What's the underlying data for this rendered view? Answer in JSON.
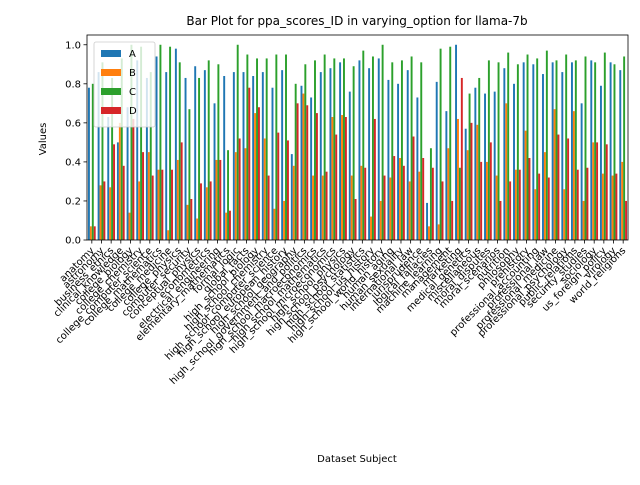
{
  "chart_data": {
    "type": "bar",
    "title": "Bar Plot for ppa_scores_ID in varying_option for llama-7b",
    "xlabel": "Dataset Subject",
    "ylabel": "Values",
    "ylim": [
      0,
      1.05
    ],
    "yticks": [
      "0.0",
      "0.2",
      "0.4",
      "0.6",
      "0.8",
      "1.0"
    ],
    "legend_position": "upper left",
    "categories": [
      "anatomy",
      "astronomy",
      "business_ethics",
      "clinical_knowledge",
      "college_biology",
      "college_chemistry",
      "college_computer_science",
      "college_mathematics",
      "college_medicine",
      "college_physics",
      "computer_security",
      "conceptual_physics",
      "econometrics",
      "electrical_engineering",
      "elementary_mathematics",
      "formal_logic",
      "global_facts",
      "high_school_biology",
      "high_school_chemistry",
      "high_school_computer_science",
      "high_school_european_history",
      "high_school_geography",
      "high_school_government_and_politics",
      "high_school_macroeconomics",
      "high_school_mathematics",
      "high_school_microeconomics",
      "high_school_physics",
      "high_school_psychology",
      "high_school_statistics",
      "high_school_us_history",
      "high_school_world_history",
      "human_aging",
      "human_sexuality",
      "international_law",
      "jurisprudence",
      "logical_fallacies",
      "machine_learning",
      "management",
      "marketing",
      "medical_genetics",
      "miscellaneous",
      "moral_disputes",
      "moral_scenarios",
      "nutrition",
      "philosophy",
      "prehistory",
      "professional_accounting",
      "professional_law",
      "professional_medicine",
      "professional_psychology",
      "public_relations",
      "security_studies",
      "sociology",
      "us_foreign_policy",
      "virology",
      "world_religions"
    ],
    "series": [
      {
        "name": "A",
        "color": "#1f77b4",
        "values": [
          0.78,
          0.86,
          0.63,
          0.5,
          0.68,
          0.92,
          0.83,
          0.94,
          0.86,
          0.98,
          0.83,
          0.89,
          0.87,
          0.7,
          0.84,
          0.86,
          0.86,
          0.84,
          0.86,
          0.78,
          0.87,
          0.44,
          0.79,
          0.73,
          0.86,
          0.88,
          0.91,
          0.76,
          0.92,
          0.88,
          0.93,
          0.82,
          0.8,
          0.87,
          0.73,
          0.19,
          0.81,
          0.66,
          1.0,
          0.57,
          0.78,
          0.75,
          0.76,
          0.88,
          0.8,
          0.91,
          0.9,
          0.85,
          0.91,
          0.86,
          0.91,
          0.7,
          0.92,
          0.79,
          0.91,
          0.87
        ]
      },
      {
        "name": "B",
        "color": "#ff7f0e",
        "values": [
          0.07,
          0.28,
          0.27,
          0.6,
          0.14,
          0.3,
          0.45,
          0.36,
          0.05,
          0.41,
          0.18,
          0.11,
          0.27,
          0.41,
          0.14,
          0.45,
          0.47,
          0.65,
          0.52,
          0.16,
          0.2,
          0.38,
          0.75,
          0.33,
          0.33,
          0.63,
          0.64,
          0.33,
          0.38,
          0.12,
          0.2,
          0.32,
          0.42,
          0.3,
          0.35,
          0.07,
          0.08,
          0.47,
          0.62,
          0.46,
          0.59,
          0.4,
          0.33,
          0.7,
          0.36,
          0.56,
          0.26,
          0.45,
          0.67,
          0.26,
          0.66,
          0.2,
          0.5,
          0.34,
          0.33,
          0.4
        ]
      },
      {
        "name": "C",
        "color": "#2ca02c",
        "values": [
          0.8,
          0.91,
          0.83,
          0.93,
          1.0,
          0.99,
          0.86,
          1.0,
          0.99,
          0.91,
          0.67,
          0.83,
          0.92,
          0.9,
          0.46,
          1.0,
          0.95,
          0.93,
          0.93,
          0.95,
          0.95,
          0.8,
          0.9,
          0.92,
          0.95,
          0.93,
          0.93,
          0.89,
          0.97,
          0.94,
          1.0,
          0.91,
          0.92,
          0.94,
          0.91,
          0.47,
          0.98,
          0.99,
          0.37,
          0.75,
          0.83,
          0.92,
          0.91,
          0.96,
          0.9,
          0.95,
          0.93,
          0.97,
          0.92,
          0.95,
          0.92,
          0.94,
          0.91,
          0.96,
          0.9,
          0.94
        ]
      },
      {
        "name": "D",
        "color": "#d62728",
        "values": [
          0.07,
          0.3,
          0.49,
          0.38,
          0.62,
          0.45,
          0.33,
          0.36,
          0.36,
          0.5,
          0.21,
          0.29,
          0.3,
          0.41,
          0.15,
          0.52,
          0.78,
          0.68,
          0.33,
          0.55,
          0.51,
          0.7,
          0.69,
          0.65,
          0.35,
          0.54,
          0.63,
          0.21,
          0.37,
          0.62,
          0.33,
          0.43,
          0.38,
          0.53,
          0.42,
          0.37,
          0.3,
          0.2,
          0.83,
          0.6,
          0.4,
          0.5,
          0.2,
          0.3,
          0.36,
          0.42,
          0.34,
          0.32,
          0.54,
          0.52,
          0.36,
          0.37,
          0.5,
          0.49,
          0.34,
          0.2
        ]
      }
    ]
  }
}
